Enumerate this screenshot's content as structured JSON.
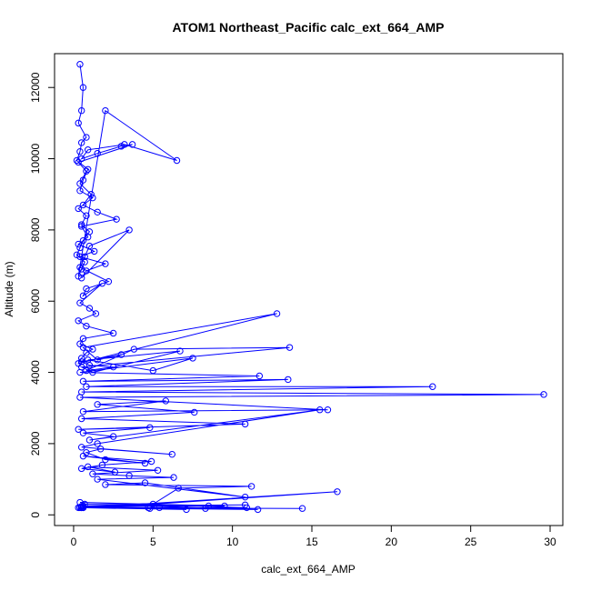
{
  "chart_data": {
    "type": "line",
    "title": "ATOM1 Northeast_Pacific calc_ext_664_AMP",
    "xlabel": "calc_ext_664_AMP",
    "ylabel": "Altitude (m)",
    "xlim": [
      -1.2,
      30.8
    ],
    "ylim": [
      -300,
      12950
    ],
    "x_ticks": [
      0,
      5,
      10,
      15,
      20,
      25,
      30
    ],
    "y_ticks": [
      0,
      2000,
      4000,
      6000,
      8000,
      10000,
      12000
    ],
    "grid": false,
    "line_color": "#0000ff",
    "marker": "open-circle",
    "series": [
      {
        "x": [
          0.4,
          0.6,
          0.5,
          0.3,
          0.8,
          0.5,
          0.4,
          0.2,
          0.9,
          0.6,
          0.4,
          1.2,
          0.3,
          0.8,
          0.5,
          1.0,
          0.6,
          0.4,
          0.2,
          0.7,
          0.5,
          0.3,
          2.0,
          6.5,
          3.2,
          0.9,
          0.5,
          1.5,
          3.0,
          3.7,
          0.3,
          0.8,
          0.4,
          1.1,
          0.6,
          1.5,
          2.7,
          0.5,
          0.9,
          0.3,
          1.3,
          0.4,
          2.0,
          0.8,
          0.5,
          3.5,
          1.0,
          0.7,
          0.4,
          2.2,
          0.8,
          0.6,
          1.8,
          0.4,
          1.0,
          1.4,
          0.3,
          0.8,
          2.5,
          0.6,
          0.4,
          1.2,
          0.8,
          0.5,
          0.3,
          12.8,
          0.6,
          1.5,
          3.0,
          0.5,
          1.0,
          2.5,
          0.8,
          3.8,
          13.6,
          0.5,
          1.2,
          6.7,
          0.9,
          5.0,
          7.5,
          0.4,
          11.7,
          0.6,
          13.5,
          0.8,
          22.6,
          0.5,
          29.6,
          0.4,
          16.0,
          0.6,
          5.8,
          1.5,
          7.6,
          0.5,
          10.8,
          0.3,
          4.8,
          0.6,
          2.5,
          1.0,
          15.5,
          1.5,
          0.5,
          6.2,
          1.7,
          0.8,
          2.0,
          4.5,
          0.6,
          4.9,
          1.8,
          0.5,
          2.6,
          0.9,
          5.3,
          1.2,
          3.5,
          6.3,
          1.5,
          10.8,
          4.5,
          2.0,
          11.2,
          6.6,
          5.0,
          16.6,
          0.6,
          14.4,
          0.5,
          11.6,
          0.7,
          9.5,
          0.4,
          10.9,
          0.3,
          8.3,
          0.6,
          7.1,
          0.5,
          4.8,
          0.4,
          5.4,
          0.6,
          0.5,
          0.4,
          4.7,
          0.5,
          8.5,
          0.6,
          10.8
        ],
        "y": [
          12650,
          12000,
          11350,
          11000,
          10600,
          10450,
          10200,
          9950,
          9700,
          9400,
          9100,
          8900,
          8600,
          8400,
          8150,
          7950,
          7700,
          7500,
          7300,
          7100,
          6900,
          6700,
          11350,
          9950,
          10400,
          10250,
          10000,
          10150,
          10350,
          10400,
          9900,
          9650,
          9300,
          9000,
          8700,
          8500,
          8300,
          8100,
          7800,
          7600,
          7400,
          7250,
          7050,
          6850,
          6650,
          8000,
          7550,
          7250,
          6950,
          6550,
          6350,
          6150,
          6500,
          5950,
          5800,
          5650,
          5450,
          5300,
          5100,
          4950,
          4800,
          4650,
          4550,
          4400,
          4250,
          5650,
          4700,
          4350,
          4500,
          4300,
          4200,
          4150,
          4050,
          4650,
          4700,
          4150,
          4000,
          4600,
          4350,
          4050,
          4400,
          4000,
          3900,
          3750,
          3800,
          3600,
          3600,
          3450,
          3380,
          3300,
          2950,
          2900,
          3200,
          3100,
          2880,
          2700,
          2550,
          2400,
          2450,
          2300,
          2200,
          2100,
          2950,
          2000,
          1900,
          1700,
          1850,
          1750,
          1550,
          1450,
          1650,
          1500,
          1400,
          1300,
          1200,
          1350,
          1250,
          1150,
          1100,
          1050,
          1000,
          500,
          900,
          850,
          800,
          750,
          300,
          650,
          200,
          180,
          200,
          150,
          300,
          250,
          350,
          200,
          200,
          180,
          200,
          150,
          200,
          180,
          210,
          200,
          220,
          200,
          200,
          200,
          240,
          250,
          250,
          280
        ]
      }
    ]
  }
}
